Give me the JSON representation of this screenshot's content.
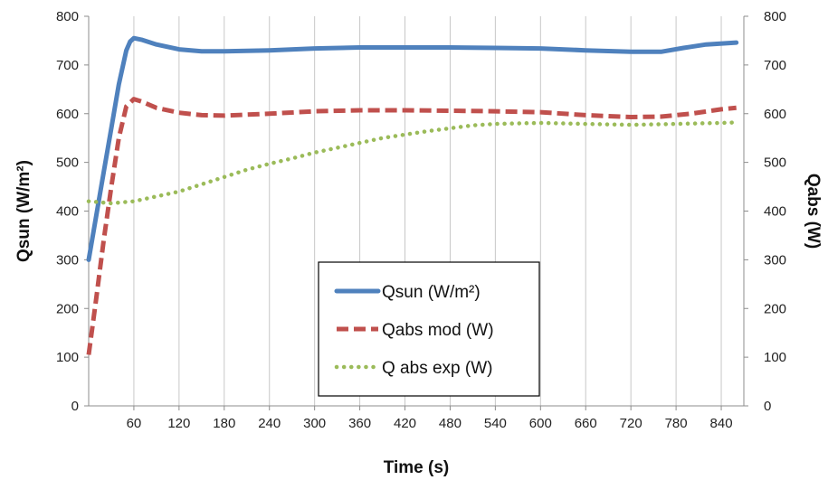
{
  "chart_data": {
    "type": "line",
    "xlabel": "Time (s)",
    "ylabel_left": "Qsun (W/m²)",
    "ylabel_right": "Qabs (W)",
    "xlim": [
      0,
      870
    ],
    "ylim_left": [
      0,
      800
    ],
    "ylim_right": [
      0,
      800
    ],
    "x_ticks": [
      60,
      120,
      180,
      240,
      300,
      360,
      420,
      480,
      540,
      600,
      660,
      720,
      780,
      840
    ],
    "y_ticks_left": [
      0,
      100,
      200,
      300,
      400,
      500,
      600,
      700,
      800
    ],
    "y_ticks_right": [
      0,
      100,
      200,
      300,
      400,
      500,
      600,
      700,
      800
    ],
    "grid": "vertical",
    "legend_position": "center-bottom",
    "series": [
      {
        "name": "Qsun (W/m²)",
        "axis": "left",
        "style": "solid",
        "color": "#4F81BD",
        "x": [
          0,
          10,
          20,
          30,
          40,
          50,
          55,
          60,
          70,
          90,
          120,
          150,
          180,
          240,
          300,
          360,
          420,
          480,
          540,
          600,
          660,
          720,
          760,
          790,
          820,
          860
        ],
        "y": [
          300,
          390,
          480,
          570,
          660,
          730,
          748,
          755,
          752,
          742,
          732,
          728,
          728,
          730,
          734,
          736,
          736,
          736,
          735,
          734,
          730,
          727,
          727,
          735,
          742,
          746
        ]
      },
      {
        "name": "Qabs mod (W)",
        "axis": "right",
        "style": "dashed",
        "color": "#C0504D",
        "x": [
          0,
          10,
          20,
          30,
          40,
          50,
          60,
          70,
          90,
          120,
          150,
          180,
          240,
          300,
          360,
          420,
          480,
          540,
          600,
          660,
          720,
          760,
          800,
          840,
          860
        ],
        "y": [
          105,
          220,
          340,
          450,
          550,
          615,
          630,
          625,
          612,
          602,
          597,
          596,
          600,
          605,
          607,
          607,
          606,
          605,
          603,
          597,
          593,
          594,
          600,
          609,
          612
        ]
      },
      {
        "name": "Q abs exp (W)",
        "axis": "right",
        "style": "dotted",
        "color": "#9BBB59",
        "x": [
          0,
          30,
          60,
          90,
          120,
          150,
          180,
          210,
          240,
          270,
          300,
          330,
          360,
          390,
          420,
          450,
          480,
          510,
          540,
          570,
          600,
          630,
          660,
          690,
          720,
          750,
          780,
          810,
          840,
          860
        ],
        "y": [
          420,
          416,
          420,
          430,
          440,
          455,
          470,
          485,
          497,
          508,
          520,
          530,
          540,
          550,
          557,
          564,
          570,
          576,
          579,
          580,
          581,
          580,
          579,
          578,
          577,
          578,
          579,
          580,
          581,
          582
        ]
      }
    ]
  }
}
